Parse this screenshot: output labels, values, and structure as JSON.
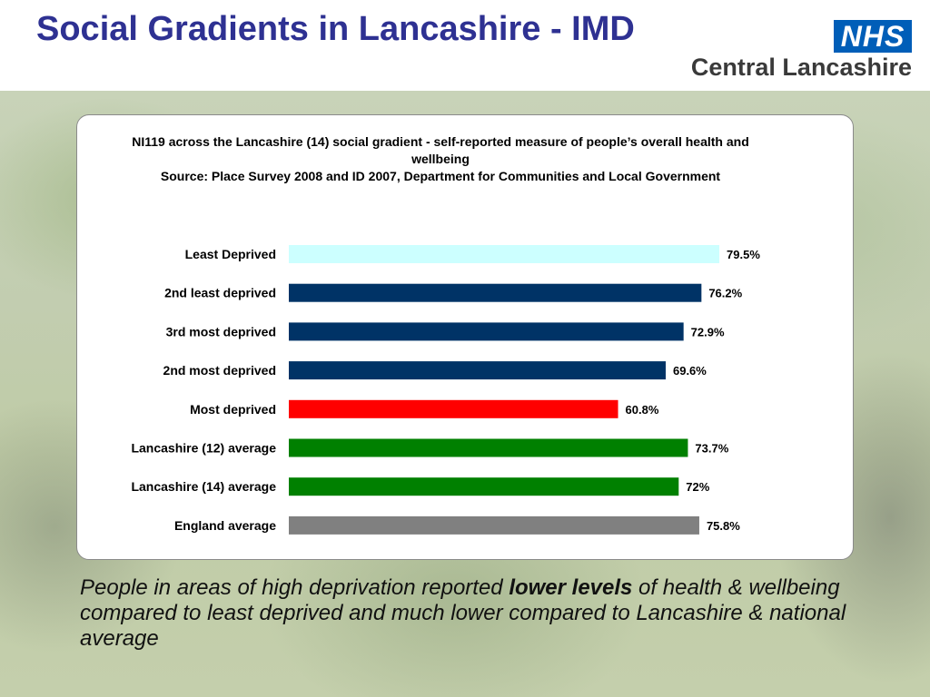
{
  "page": {
    "title": "Social Gradients in Lancashire  - IMD"
  },
  "logo": {
    "nhs": "NHS",
    "org": "Central Lancashire",
    "nhs_color": "#005eb8"
  },
  "chart_data": {
    "type": "bar",
    "orientation": "horizontal",
    "title_line1": "NI119 across the Lancashire (14) social gradient - self-reported measure of people’s overall health and wellbeing",
    "title_line2": "Source: Place Survey 2008 and ID 2007, Department for Communities and Local Government",
    "categories": [
      "Least Deprived",
      "2nd least deprived",
      "3rd most deprived",
      "2nd most deprived",
      "Most deprived",
      "Lancashire (12) average",
      "Lancashire (14) average",
      "England average"
    ],
    "values": [
      79.5,
      76.2,
      72.9,
      69.6,
      60.8,
      73.7,
      72.0,
      75.8
    ],
    "labels": [
      "79.5%",
      "76.2%",
      "72.9%",
      "69.6%",
      "60.8%",
      "73.7%",
      "72%",
      "75.8%"
    ],
    "colors": [
      "#ccffff",
      "#003366",
      "#003366",
      "#003366",
      "#ff0000",
      "#008000",
      "#008000",
      "#808080"
    ],
    "xlim": [
      0,
      80
    ],
    "grid": false,
    "legend": "none"
  },
  "caption": {
    "part1": "People in areas of high deprivation  reported ",
    "emphasis": "lower levels",
    "part2": " of health & wellbeing compared to least deprived and much lower compared to Lancashire & national average"
  }
}
